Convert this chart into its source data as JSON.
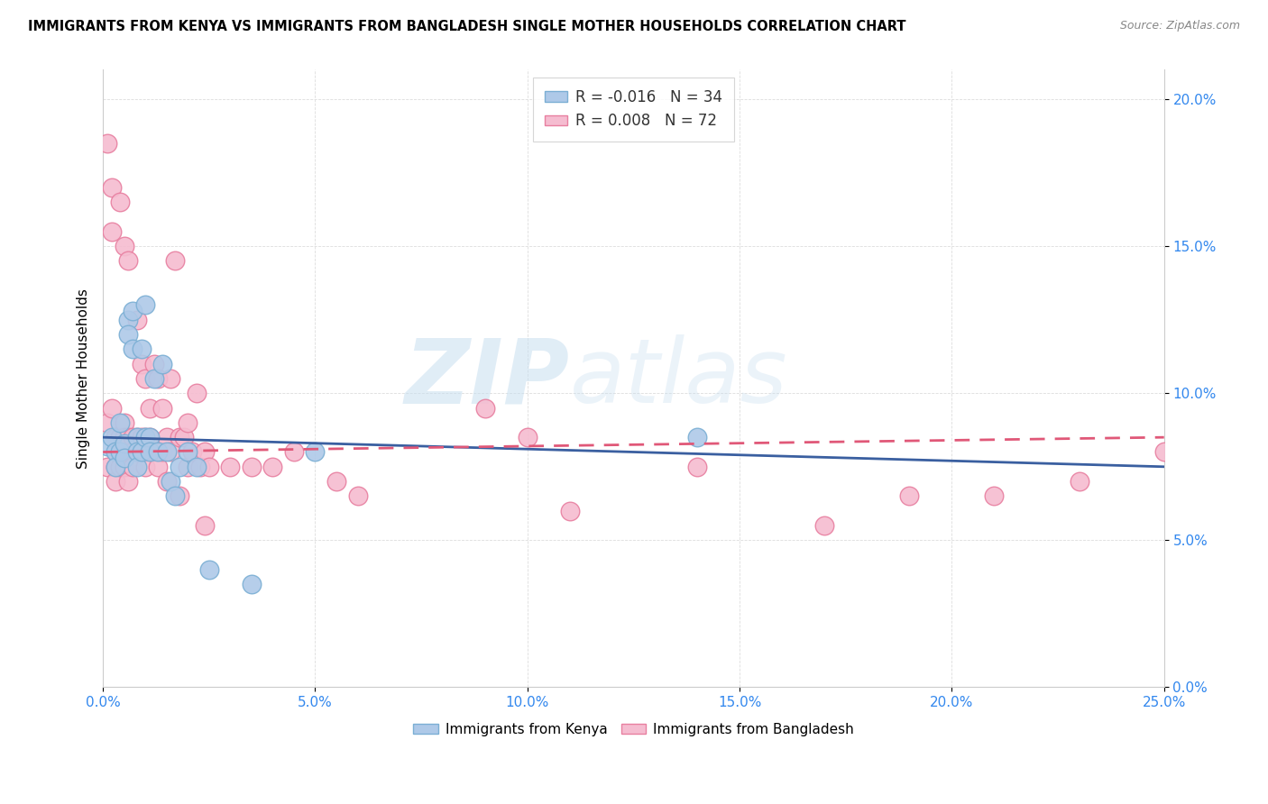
{
  "title": "IMMIGRANTS FROM KENYA VS IMMIGRANTS FROM BANGLADESH SINGLE MOTHER HOUSEHOLDS CORRELATION CHART",
  "source": "Source: ZipAtlas.com",
  "xmin": 0.0,
  "xmax": 25.0,
  "ymin": 0.0,
  "ymax": 21.0,
  "kenya_color": "#aec9e8",
  "kenya_edge_color": "#7bafd4",
  "bangladesh_color": "#f5bcd0",
  "bangladesh_edge_color": "#e87fa0",
  "kenya_line_color": "#3a5fa0",
  "bangladesh_line_color": "#e05878",
  "legend_kenya_R": "-0.016",
  "legend_kenya_N": "34",
  "legend_bangladesh_R": "0.008",
  "legend_bangladesh_N": "72",
  "watermark_zip": "ZIP",
  "watermark_atlas": "atlas",
  "kenya_x": [
    0.1,
    0.2,
    0.3,
    0.3,
    0.4,
    0.4,
    0.5,
    0.5,
    0.6,
    0.6,
    0.7,
    0.7,
    0.8,
    0.8,
    0.8,
    0.9,
    0.9,
    1.0,
    1.0,
    1.1,
    1.1,
    1.2,
    1.3,
    1.4,
    1.5,
    1.6,
    1.7,
    1.8,
    2.0,
    2.2,
    2.5,
    3.5,
    5.0,
    14.0
  ],
  "kenya_y": [
    8.2,
    8.5,
    8.0,
    7.5,
    9.0,
    8.0,
    8.3,
    7.8,
    12.5,
    12.0,
    12.8,
    11.5,
    8.5,
    8.0,
    7.5,
    11.5,
    8.0,
    8.5,
    13.0,
    8.5,
    8.0,
    10.5,
    8.0,
    11.0,
    8.0,
    7.0,
    6.5,
    7.5,
    8.0,
    7.5,
    4.0,
    3.5,
    8.0,
    8.5
  ],
  "bangladesh_x": [
    0.1,
    0.1,
    0.1,
    0.2,
    0.2,
    0.2,
    0.3,
    0.3,
    0.3,
    0.3,
    0.4,
    0.4,
    0.4,
    0.5,
    0.5,
    0.5,
    0.5,
    0.6,
    0.6,
    0.6,
    0.6,
    0.7,
    0.7,
    0.7,
    0.8,
    0.8,
    0.8,
    0.9,
    0.9,
    1.0,
    1.0,
    1.0,
    1.0,
    1.1,
    1.1,
    1.2,
    1.2,
    1.3,
    1.3,
    1.4,
    1.4,
    1.5,
    1.5,
    1.6,
    1.6,
    1.7,
    1.8,
    1.8,
    1.9,
    2.0,
    2.0,
    2.1,
    2.2,
    2.3,
    2.4,
    2.4,
    2.5,
    3.0,
    3.5,
    4.0,
    4.5,
    5.5,
    6.0,
    9.0,
    10.0,
    11.0,
    14.0,
    17.0,
    19.0,
    21.0,
    23.0,
    25.0
  ],
  "bangladesh_y": [
    18.5,
    9.0,
    7.5,
    17.0,
    15.5,
    9.5,
    8.5,
    8.0,
    7.5,
    7.0,
    16.5,
    8.5,
    7.5,
    15.0,
    9.0,
    8.5,
    7.5,
    14.5,
    8.5,
    8.0,
    7.0,
    8.5,
    8.0,
    7.5,
    12.5,
    8.5,
    8.0,
    11.0,
    8.5,
    10.5,
    8.5,
    8.0,
    7.5,
    9.5,
    8.5,
    11.0,
    8.0,
    10.5,
    7.5,
    9.5,
    8.0,
    8.5,
    7.0,
    10.5,
    8.0,
    14.5,
    8.5,
    6.5,
    8.5,
    9.0,
    7.5,
    8.0,
    10.0,
    7.5,
    8.0,
    5.5,
    7.5,
    7.5,
    7.5,
    7.5,
    8.0,
    7.0,
    6.5,
    9.5,
    8.5,
    6.0,
    7.5,
    5.5,
    6.5,
    6.5,
    7.0,
    8.0
  ]
}
